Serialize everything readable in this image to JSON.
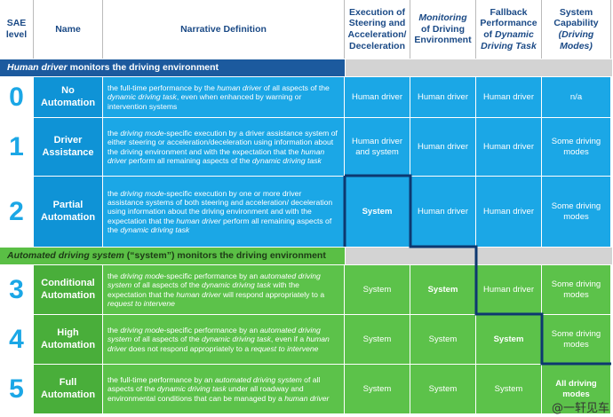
{
  "header": [
    "SAE level",
    "Name",
    "Narrative Definition",
    "Execution of Steering and Acceleration/ Deceleration",
    [
      {
        "text": "Monitoring",
        "italic": true
      },
      {
        "text": " of Driving Environment"
      }
    ],
    [
      {
        "text": "Fallback Performance of "
      },
      {
        "text": "Dynamic Driving Task",
        "italic": true
      }
    ],
    [
      {
        "text": "System Capability "
      },
      {
        "text": "(Driving Modes)",
        "italic": true
      }
    ]
  ],
  "sections": [
    {
      "title": [
        {
          "text": "Human driver",
          "italic": true
        },
        {
          "text": " monitors the driving environment"
        }
      ],
      "rows": [
        {
          "level": 0,
          "name": "No Automation",
          "definition": [
            {
              "text": "the full-time performance by the "
            },
            {
              "text": "human driver",
              "italic": true
            },
            {
              "text": " of all aspects of the "
            },
            {
              "text": "dynamic driving task",
              "italic": true
            },
            {
              "text": ", even when enhanced by warning or intervention systems"
            }
          ],
          "execution": "Human driver",
          "monitoring": "Human driver",
          "fallback": "Human driver",
          "capability": "n/a"
        },
        {
          "level": 1,
          "name": "Driver Assistance",
          "definition": [
            {
              "text": "the "
            },
            {
              "text": "driving mode",
              "italic": true
            },
            {
              "text": "-specific execution by a driver assistance system of either steering or acceleration/deceleration using information about the driving environment and with the expectation that the "
            },
            {
              "text": "human driver",
              "italic": true
            },
            {
              "text": " perform all remaining aspects of the "
            },
            {
              "text": "dynamic driving task",
              "italic": true
            }
          ],
          "execution": "Human driver and system",
          "monitoring": "Human driver",
          "fallback": "Human driver",
          "capability": "Some driving modes"
        },
        {
          "level": 2,
          "name": "Partial Automation",
          "definition": [
            {
              "text": "the "
            },
            {
              "text": "driving mode",
              "italic": true
            },
            {
              "text": "-specific execution by one or more driver assistance systems of both steering and acceleration/ deceleration using information about the driving environment and with the expectation that the "
            },
            {
              "text": "human driver",
              "italic": true
            },
            {
              "text": " perform all remaining aspects of the "
            },
            {
              "text": "dynamic driving task",
              "italic": true
            }
          ],
          "execution": "System",
          "monitoring": "Human driver",
          "fallback": "Human driver",
          "capability": "Some driving modes",
          "bold": "execution"
        }
      ]
    },
    {
      "title": [
        {
          "text": "Automated driving system",
          "italic": true
        },
        {
          "text": " (“system”) monitors the driving environment"
        }
      ],
      "rows": [
        {
          "level": 3,
          "name": "Conditional Automation",
          "definition": [
            {
              "text": "the "
            },
            {
              "text": "driving mode",
              "italic": true
            },
            {
              "text": "-specific performance by an "
            },
            {
              "text": "automated driving system",
              "italic": true
            },
            {
              "text": " of all aspects of the "
            },
            {
              "text": "dynamic driving task",
              "italic": true
            },
            {
              "text": " with the expectation that the "
            },
            {
              "text": "human driver",
              "italic": true
            },
            {
              "text": " will respond appropriately to a "
            },
            {
              "text": "request to intervene",
              "italic": true
            }
          ],
          "execution": "System",
          "monitoring": "System",
          "fallback": "Human driver",
          "capability": "Some driving modes",
          "bold": "monitoring"
        },
        {
          "level": 4,
          "name": "High Automation",
          "definition": [
            {
              "text": "the "
            },
            {
              "text": "driving mode",
              "italic": true
            },
            {
              "text": "-specific performance by an "
            },
            {
              "text": "automated driving system",
              "italic": true
            },
            {
              "text": " of all aspects of the "
            },
            {
              "text": "dynamic driving task",
              "italic": true
            },
            {
              "text": ", even if a "
            },
            {
              "text": "human driver",
              "italic": true
            },
            {
              "text": " does not respond appropriately to a "
            },
            {
              "text": "request to intervene",
              "italic": true
            }
          ],
          "execution": "System",
          "monitoring": "System",
          "fallback": "System",
          "capability": "Some driving modes",
          "bold": "fallback"
        },
        {
          "level": 5,
          "name": "Full Automation",
          "definition": [
            {
              "text": "the full-time performance by an "
            },
            {
              "text": "automated driving system",
              "italic": true
            },
            {
              "text": " of all aspects of the "
            },
            {
              "text": "dynamic driving task",
              "italic": true
            },
            {
              "text": " under all roadway and environmental conditions that can be managed by a "
            },
            {
              "text": "human driver",
              "italic": true
            }
          ],
          "execution": "System",
          "monitoring": "System",
          "fallback": "System",
          "capability": "All driving modes",
          "bold": "capability"
        }
      ]
    }
  ],
  "watermark": "@一轩见车"
}
